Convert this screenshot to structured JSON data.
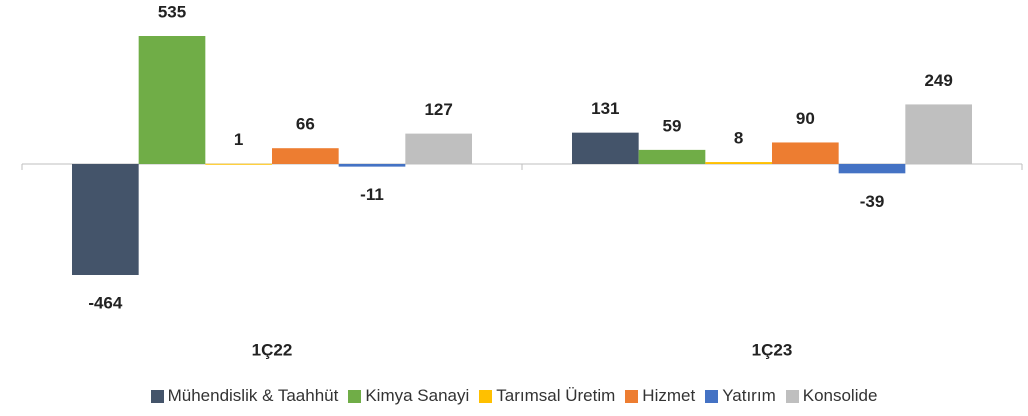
{
  "chart_data": {
    "type": "bar",
    "categories": [
      "1Ç22",
      "1Ç23"
    ],
    "series": [
      {
        "name": "Mühendislik & Taahhüt",
        "color": "#44546a",
        "values": [
          -464,
          131
        ]
      },
      {
        "name": "Kimya Sanayi",
        "color": "#70ad47",
        "values": [
          535,
          59
        ]
      },
      {
        "name": "Tarımsal Üretim",
        "color": "#ffc000",
        "values": [
          1,
          8
        ]
      },
      {
        "name": "Hizmet",
        "color": "#ed7d31",
        "values": [
          66,
          90
        ]
      },
      {
        "name": "Yatırım",
        "color": "#4472c4",
        "values": [
          -11,
          -39
        ]
      },
      {
        "name": "Konsolide",
        "color": "#bfbfbf",
        "values": [
          127,
          249
        ]
      }
    ]
  }
}
